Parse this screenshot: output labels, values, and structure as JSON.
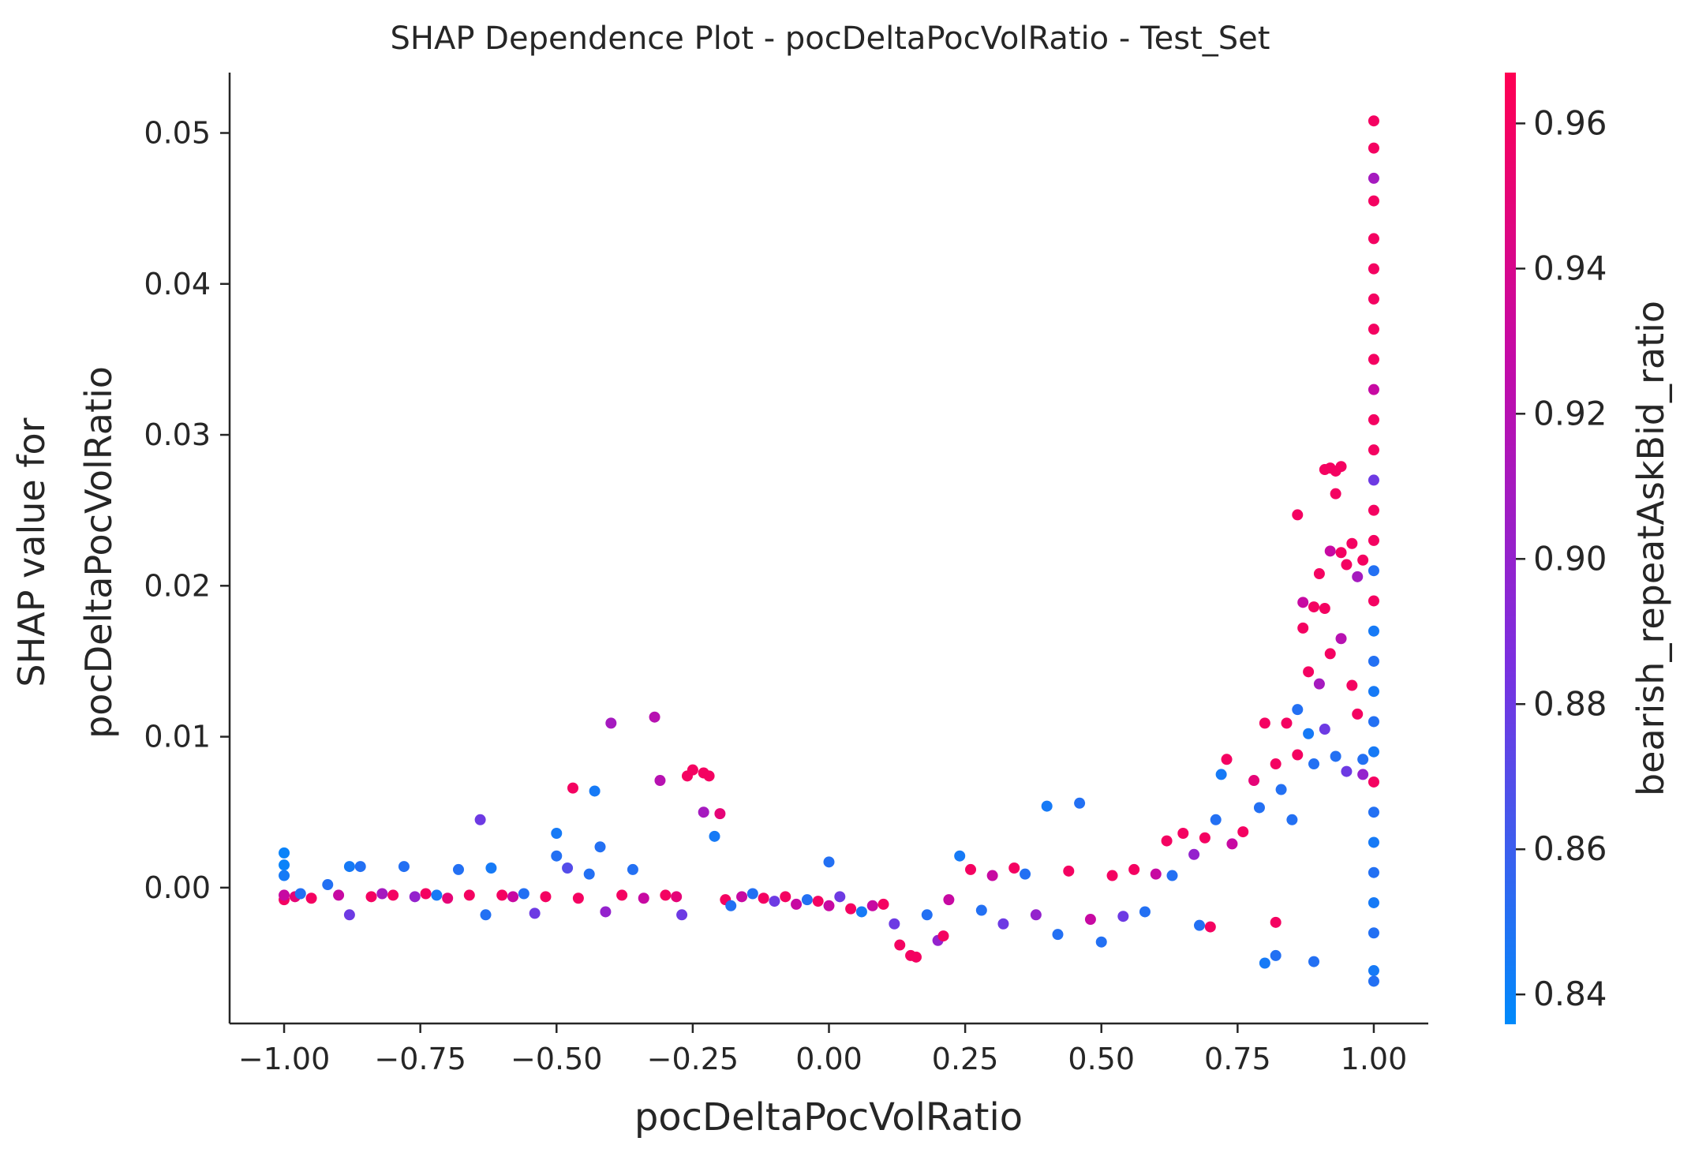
{
  "chart_data": {
    "type": "scatter",
    "title": "SHAP Dependence Plot - pocDeltaPocVolRatio - Test_Set",
    "xlabel": "pocDeltaPocVolRatio",
    "ylabel_lines": [
      "SHAP value for",
      "pocDeltaPocVolRatio"
    ],
    "xlim": [
      -1.1,
      1.1
    ],
    "ylim": [
      -0.009,
      0.054
    ],
    "x_ticks": [
      -1.0,
      -0.75,
      -0.5,
      -0.25,
      0.0,
      0.25,
      0.5,
      0.75,
      1.0
    ],
    "x_tick_labels": [
      "−1.00",
      "−0.75",
      "−0.50",
      "−0.25",
      "0.00",
      "0.25",
      "0.50",
      "0.75",
      "1.00"
    ],
    "y_ticks": [
      0.0,
      0.01,
      0.02,
      0.03,
      0.04,
      0.05
    ],
    "y_tick_labels": [
      "0.00",
      "0.01",
      "0.02",
      "0.03",
      "0.04",
      "0.05"
    ],
    "grid": false,
    "colorbar": {
      "label": "bearish_repeatAskBid_ratio",
      "range": [
        0.836,
        0.967
      ],
      "ticks": [
        0.84,
        0.86,
        0.88,
        0.9,
        0.92,
        0.94,
        0.96
      ],
      "tick_labels": [
        "0.84",
        "0.86",
        "0.88",
        "0.90",
        "0.92",
        "0.94",
        "0.96"
      ],
      "colormap": [
        "#008afb",
        "#7b2fe0",
        "#c40aa7",
        "#ff0052"
      ]
    },
    "points": [
      [
        -1.0,
        0.0023,
        0.84
      ],
      [
        -1.0,
        0.0015,
        0.84
      ],
      [
        -1.0,
        0.0008,
        0.845
      ],
      [
        -1.0,
        -0.0008,
        0.96
      ],
      [
        -1.0,
        -0.0005,
        0.93
      ],
      [
        -0.98,
        -0.0006,
        0.95
      ],
      [
        -0.97,
        -0.0004,
        0.85
      ],
      [
        -0.95,
        -0.0007,
        0.96
      ],
      [
        -0.92,
        0.0002,
        0.85
      ],
      [
        -0.9,
        -0.0005,
        0.93
      ],
      [
        -0.88,
        0.0014,
        0.845
      ],
      [
        -0.86,
        0.0014,
        0.85
      ],
      [
        -0.88,
        -0.0018,
        0.88
      ],
      [
        -0.84,
        -0.0006,
        0.96
      ],
      [
        -0.82,
        -0.0004,
        0.91
      ],
      [
        -0.8,
        -0.0005,
        0.96
      ],
      [
        -0.78,
        0.0014,
        0.85
      ],
      [
        -0.76,
        -0.0006,
        0.9
      ],
      [
        -0.74,
        -0.0004,
        0.96
      ],
      [
        -0.72,
        -0.0005,
        0.845
      ],
      [
        -0.7,
        -0.0007,
        0.95
      ],
      [
        -0.68,
        0.0012,
        0.85
      ],
      [
        -0.66,
        -0.0005,
        0.96
      ],
      [
        -0.64,
        0.0045,
        0.88
      ],
      [
        -0.63,
        -0.0018,
        0.85
      ],
      [
        -0.62,
        0.0013,
        0.845
      ],
      [
        -0.6,
        -0.0005,
        0.96
      ],
      [
        -0.58,
        -0.0006,
        0.93
      ],
      [
        -0.56,
        -0.0004,
        0.85
      ],
      [
        -0.54,
        -0.0017,
        0.88
      ],
      [
        -0.52,
        -0.0006,
        0.96
      ],
      [
        -0.5,
        0.0036,
        0.845
      ],
      [
        -0.5,
        0.0021,
        0.85
      ],
      [
        -0.48,
        0.0013,
        0.87
      ],
      [
        -0.47,
        0.0066,
        0.96
      ],
      [
        -0.46,
        -0.0007,
        0.96
      ],
      [
        -0.44,
        0.0009,
        0.85
      ],
      [
        -0.43,
        0.0064,
        0.845
      ],
      [
        -0.42,
        0.0027,
        0.85
      ],
      [
        -0.41,
        -0.0016,
        0.9
      ],
      [
        -0.4,
        0.0109,
        0.91
      ],
      [
        -0.38,
        -0.0005,
        0.96
      ],
      [
        -0.36,
        0.0012,
        0.85
      ],
      [
        -0.34,
        -0.0007,
        0.93
      ],
      [
        -0.32,
        0.0113,
        0.92
      ],
      [
        -0.31,
        0.0071,
        0.92
      ],
      [
        -0.3,
        -0.0005,
        0.96
      ],
      [
        -0.28,
        -0.0006,
        0.95
      ],
      [
        -0.27,
        -0.0018,
        0.88
      ],
      [
        -0.26,
        0.0074,
        0.96
      ],
      [
        -0.25,
        0.0078,
        0.96
      ],
      [
        -0.23,
        0.0076,
        0.96
      ],
      [
        -0.22,
        0.0074,
        0.96
      ],
      [
        -0.23,
        0.005,
        0.91
      ],
      [
        -0.21,
        0.0034,
        0.845
      ],
      [
        -0.2,
        0.0049,
        0.95
      ],
      [
        -0.19,
        -0.0008,
        0.96
      ],
      [
        -0.18,
        -0.0012,
        0.85
      ],
      [
        -0.16,
        -0.0006,
        0.93
      ],
      [
        -0.14,
        -0.0004,
        0.85
      ],
      [
        -0.12,
        -0.0007,
        0.96
      ],
      [
        -0.1,
        -0.0009,
        0.88
      ],
      [
        -0.08,
        -0.0006,
        0.96
      ],
      [
        -0.06,
        -0.0011,
        0.93
      ],
      [
        -0.04,
        -0.0008,
        0.85
      ],
      [
        -0.02,
        -0.0009,
        0.96
      ],
      [
        0.0,
        0.0017,
        0.85
      ],
      [
        0.0,
        -0.0012,
        0.93
      ],
      [
        0.02,
        -0.0006,
        0.88
      ],
      [
        0.04,
        -0.0014,
        0.96
      ],
      [
        0.06,
        -0.0016,
        0.845
      ],
      [
        0.08,
        -0.0012,
        0.93
      ],
      [
        0.1,
        -0.0011,
        0.96
      ],
      [
        0.12,
        -0.0024,
        0.88
      ],
      [
        0.13,
        -0.0038,
        0.96
      ],
      [
        0.15,
        -0.0045,
        0.96
      ],
      [
        0.16,
        -0.0046,
        0.96
      ],
      [
        0.18,
        -0.0018,
        0.85
      ],
      [
        0.2,
        -0.0035,
        0.9
      ],
      [
        0.21,
        -0.0032,
        0.96
      ],
      [
        0.22,
        -0.0008,
        0.93
      ],
      [
        0.24,
        0.0021,
        0.845
      ],
      [
        0.26,
        0.0012,
        0.96
      ],
      [
        0.28,
        -0.0015,
        0.85
      ],
      [
        0.3,
        0.0008,
        0.93
      ],
      [
        0.32,
        -0.0024,
        0.88
      ],
      [
        0.34,
        0.0013,
        0.96
      ],
      [
        0.36,
        0.0009,
        0.85
      ],
      [
        0.38,
        -0.0018,
        0.9
      ],
      [
        0.4,
        0.0054,
        0.845
      ],
      [
        0.42,
        -0.0031,
        0.85
      ],
      [
        0.44,
        0.0011,
        0.96
      ],
      [
        0.46,
        0.0056,
        0.85
      ],
      [
        0.48,
        -0.0021,
        0.93
      ],
      [
        0.5,
        -0.0036,
        0.85
      ],
      [
        0.52,
        0.0008,
        0.96
      ],
      [
        0.54,
        -0.0019,
        0.88
      ],
      [
        0.56,
        0.0012,
        0.96
      ],
      [
        0.58,
        -0.0016,
        0.85
      ],
      [
        0.6,
        0.0009,
        0.93
      ],
      [
        0.62,
        0.0031,
        0.96
      ],
      [
        0.63,
        0.0008,
        0.85
      ],
      [
        0.65,
        0.0036,
        0.96
      ],
      [
        0.67,
        0.0022,
        0.9
      ],
      [
        0.68,
        -0.0025,
        0.85
      ],
      [
        0.69,
        0.0033,
        0.96
      ],
      [
        0.7,
        -0.0026,
        0.96
      ],
      [
        0.71,
        0.0045,
        0.85
      ],
      [
        0.72,
        0.0075,
        0.845
      ],
      [
        0.73,
        0.0085,
        0.96
      ],
      [
        0.74,
        0.0029,
        0.93
      ],
      [
        0.76,
        0.0037,
        0.96
      ],
      [
        0.78,
        0.0071,
        0.95
      ],
      [
        0.79,
        0.0053,
        0.85
      ],
      [
        0.8,
        0.0109,
        0.96
      ],
      [
        0.8,
        -0.005,
        0.845
      ],
      [
        0.82,
        -0.0045,
        0.85
      ],
      [
        0.82,
        -0.0023,
        0.96
      ],
      [
        0.82,
        0.0082,
        0.96
      ],
      [
        0.83,
        0.0065,
        0.85
      ],
      [
        0.84,
        0.0109,
        0.96
      ],
      [
        0.85,
        0.0045,
        0.85
      ],
      [
        0.86,
        0.0088,
        0.96
      ],
      [
        0.86,
        0.0118,
        0.85
      ],
      [
        0.86,
        0.0247,
        0.96
      ],
      [
        0.87,
        0.0172,
        0.96
      ],
      [
        0.87,
        0.0189,
        0.93
      ],
      [
        0.88,
        0.0143,
        0.96
      ],
      [
        0.88,
        0.0102,
        0.845
      ],
      [
        0.89,
        -0.0049,
        0.85
      ],
      [
        0.89,
        0.0186,
        0.96
      ],
      [
        0.89,
        0.0082,
        0.85
      ],
      [
        0.9,
        0.0135,
        0.91
      ],
      [
        0.9,
        0.0208,
        0.96
      ],
      [
        0.91,
        0.0277,
        0.96
      ],
      [
        0.91,
        0.0185,
        0.96
      ],
      [
        0.91,
        0.0105,
        0.88
      ],
      [
        0.92,
        0.0278,
        0.96
      ],
      [
        0.92,
        0.0223,
        0.93
      ],
      [
        0.92,
        0.0155,
        0.96
      ],
      [
        0.93,
        0.0276,
        0.96
      ],
      [
        0.93,
        0.0261,
        0.96
      ],
      [
        0.93,
        0.0087,
        0.85
      ],
      [
        0.94,
        0.0279,
        0.96
      ],
      [
        0.94,
        0.0222,
        0.96
      ],
      [
        0.94,
        0.0165,
        0.92
      ],
      [
        0.95,
        0.0214,
        0.96
      ],
      [
        0.95,
        0.0077,
        0.88
      ],
      [
        0.96,
        0.0228,
        0.96
      ],
      [
        0.96,
        0.0134,
        0.96
      ],
      [
        0.97,
        0.0206,
        0.91
      ],
      [
        0.97,
        0.0115,
        0.96
      ],
      [
        0.98,
        0.0217,
        0.96
      ],
      [
        0.98,
        0.0085,
        0.85
      ],
      [
        0.98,
        0.0075,
        0.9
      ],
      [
        1.0,
        0.0508,
        0.96
      ],
      [
        1.0,
        0.049,
        0.96
      ],
      [
        1.0,
        0.047,
        0.91
      ],
      [
        1.0,
        0.0455,
        0.96
      ],
      [
        1.0,
        0.043,
        0.96
      ],
      [
        1.0,
        0.041,
        0.96
      ],
      [
        1.0,
        0.039,
        0.96
      ],
      [
        1.0,
        0.037,
        0.96
      ],
      [
        1.0,
        0.035,
        0.96
      ],
      [
        1.0,
        0.033,
        0.93
      ],
      [
        1.0,
        0.031,
        0.96
      ],
      [
        1.0,
        0.029,
        0.96
      ],
      [
        1.0,
        0.027,
        0.88
      ],
      [
        1.0,
        0.025,
        0.96
      ],
      [
        1.0,
        0.023,
        0.96
      ],
      [
        1.0,
        0.021,
        0.85
      ],
      [
        1.0,
        0.019,
        0.96
      ],
      [
        1.0,
        0.017,
        0.845
      ],
      [
        1.0,
        0.015,
        0.85
      ],
      [
        1.0,
        0.013,
        0.845
      ],
      [
        1.0,
        0.011,
        0.85
      ],
      [
        1.0,
        0.009,
        0.845
      ],
      [
        1.0,
        0.007,
        0.96
      ],
      [
        1.0,
        0.005,
        0.85
      ],
      [
        1.0,
        0.003,
        0.845
      ],
      [
        1.0,
        0.001,
        0.85
      ],
      [
        1.0,
        -0.001,
        0.845
      ],
      [
        1.0,
        -0.003,
        0.85
      ],
      [
        1.0,
        -0.0055,
        0.845
      ],
      [
        1.0,
        -0.0062,
        0.85
      ]
    ]
  }
}
